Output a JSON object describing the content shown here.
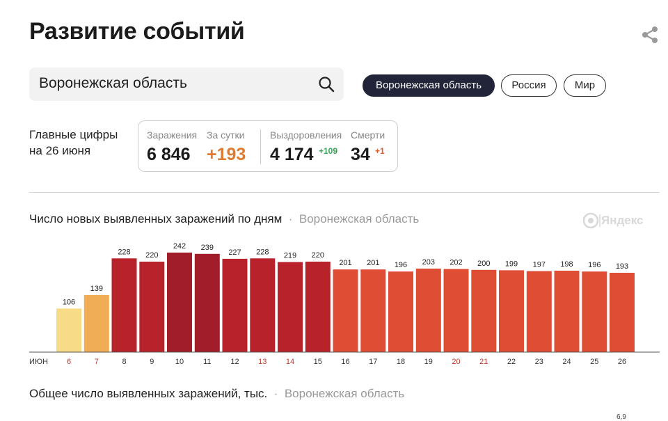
{
  "header": {
    "title": "Развитие событий"
  },
  "search": {
    "value": "Воронежская область"
  },
  "chips": [
    {
      "label": "Воронежская область",
      "active": true
    },
    {
      "label": "Россия",
      "active": false
    },
    {
      "label": "Мир",
      "active": false
    }
  ],
  "summary": {
    "label_line1": "Главные цифры",
    "label_line2": "на 26 июня",
    "infections_label": "Заражения",
    "infections_value": "6 846",
    "daily_label": "За сутки",
    "daily_value": "+193",
    "recovered_label": "Выздоровления",
    "recovered_value": "4 174",
    "recovered_delta": "+109",
    "deaths_label": "Смерти",
    "deaths_value": "34",
    "deaths_delta": "+1"
  },
  "logo": {
    "text": "Яндекс"
  },
  "colors": {
    "low": "#f7db86",
    "mid": "#f0ad55",
    "high": "#b8232b",
    "peak": "#a11d2a",
    "base": "#e04d35",
    "weekend_tick": "#c0392b",
    "tick": "#333333"
  },
  "chart_data": {
    "type": "bar",
    "title": "Число новых выявленных заражений по дням",
    "region": "Воронежская область",
    "month_label": "ИЮН",
    "categories": [
      "6",
      "7",
      "8",
      "9",
      "10",
      "11",
      "12",
      "13",
      "14",
      "15",
      "16",
      "17",
      "18",
      "19",
      "20",
      "21",
      "22",
      "23",
      "24",
      "25",
      "26"
    ],
    "values": [
      106,
      139,
      228,
      220,
      242,
      239,
      227,
      228,
      219,
      220,
      201,
      201,
      196,
      203,
      202,
      200,
      199,
      197,
      198,
      196,
      193
    ],
    "weekend": [
      true,
      true,
      false,
      false,
      false,
      false,
      false,
      true,
      true,
      false,
      false,
      false,
      false,
      false,
      true,
      true,
      false,
      false,
      false,
      false,
      false
    ],
    "color_keys": [
      "low",
      "mid",
      "high",
      "high",
      "peak",
      "peak",
      "high",
      "high",
      "high",
      "high",
      "base",
      "base",
      "base",
      "base",
      "base",
      "base",
      "base",
      "base",
      "base",
      "base",
      "base"
    ]
  },
  "bottom_chart": {
    "title": "Общее число выявленных заражений, тыс.",
    "region": "Воронежская область",
    "top_tick": "6,9"
  }
}
